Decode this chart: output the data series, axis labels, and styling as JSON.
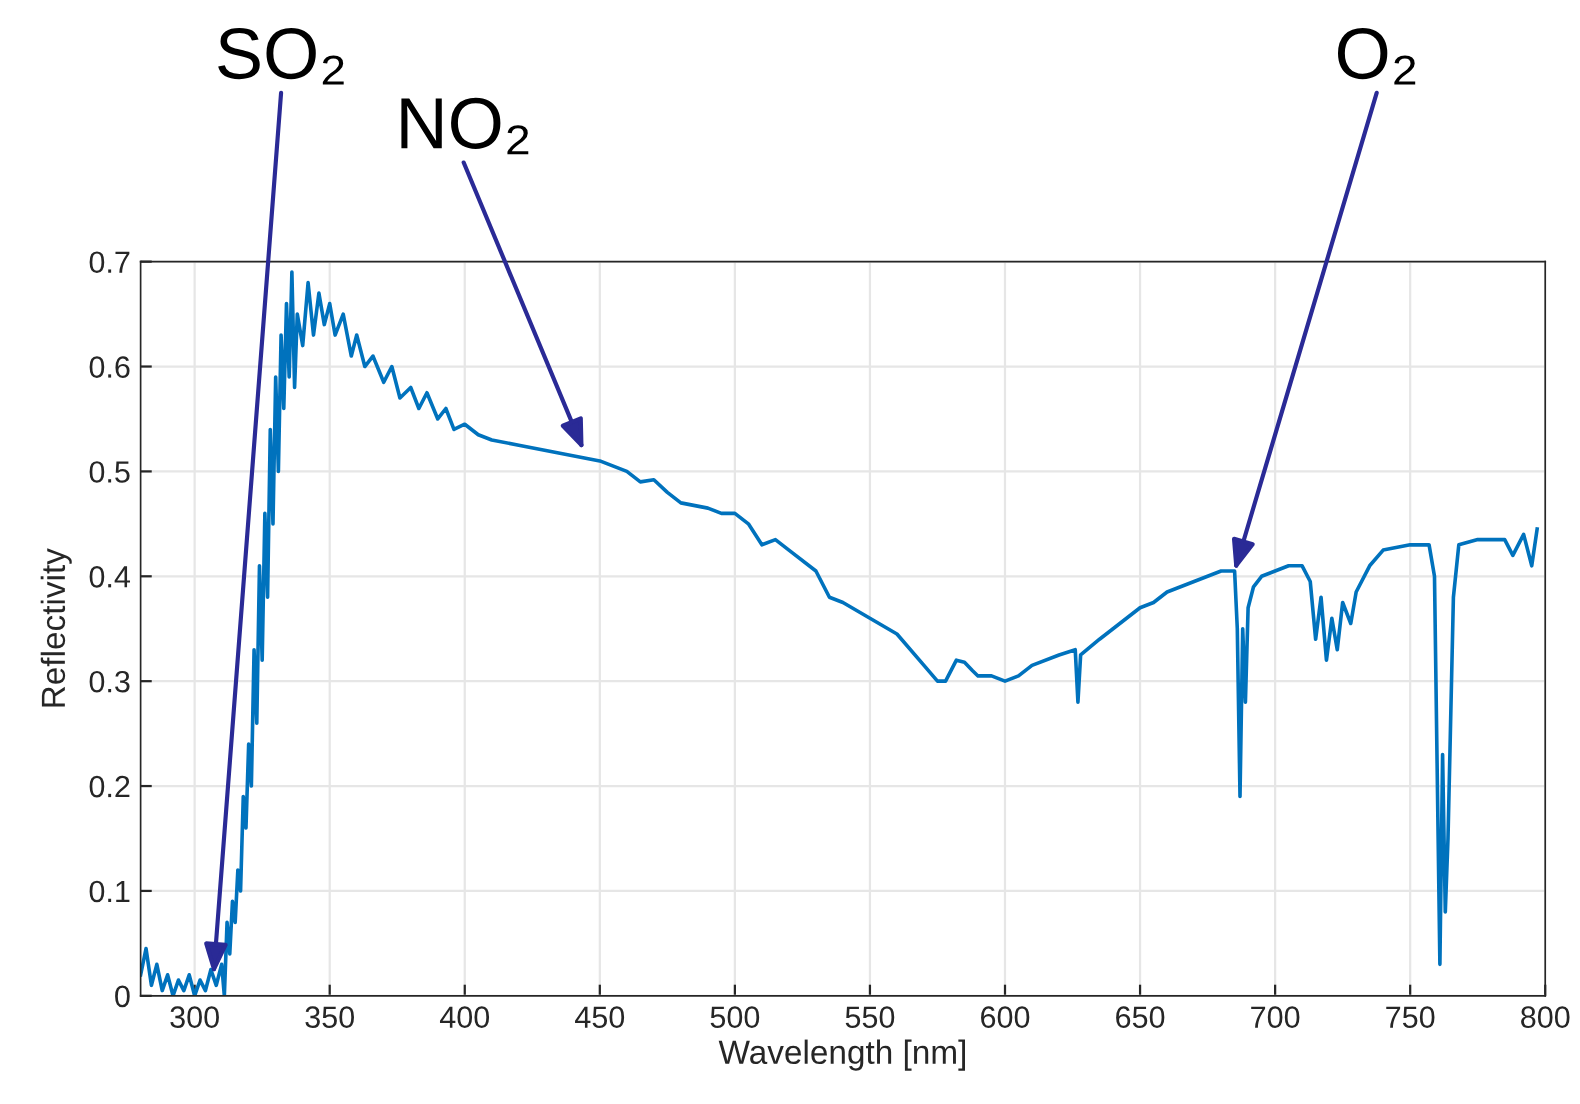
{
  "chart_data": {
    "type": "line",
    "xlabel": "Wavelength [nm]",
    "ylabel": "Reflectivity",
    "xlim": [
      280,
      800
    ],
    "ylim": [
      0,
      0.7
    ],
    "xticks": [
      300,
      350,
      400,
      450,
      500,
      550,
      600,
      650,
      700,
      750,
      800
    ],
    "yticks": [
      0,
      0.1,
      0.2,
      0.3,
      0.4,
      0.5,
      0.6,
      0.7
    ],
    "grid": true,
    "line_style": "solid",
    "marker": "none",
    "annotations": [
      {
        "text": "SO₂",
        "x": 307,
        "y": 0.02
      },
      {
        "text": "NO₂",
        "x": 444,
        "y": 0.52
      },
      {
        "text": "O₂",
        "x": 685,
        "y": 0.405
      }
    ],
    "series": [
      {
        "color": "#0072bd",
        "x": [
          280,
          282,
          284,
          286,
          288,
          290,
          292,
          294,
          296,
          298,
          300,
          302,
          304,
          306,
          308,
          310,
          311,
          312,
          313,
          314,
          315,
          316,
          317,
          318,
          319,
          320,
          321,
          322,
          323,
          324,
          325,
          326,
          327,
          328,
          329,
          330,
          331,
          332,
          333,
          334,
          335,
          336,
          337,
          338,
          340,
          342,
          344,
          346,
          348,
          350,
          352,
          355,
          358,
          360,
          363,
          366,
          370,
          373,
          376,
          380,
          383,
          386,
          390,
          393,
          396,
          400,
          405,
          410,
          420,
          430,
          440,
          450,
          460,
          465,
          470,
          475,
          480,
          490,
          495,
          500,
          505,
          510,
          515,
          520,
          530,
          535,
          540,
          550,
          560,
          570,
          575,
          578,
          582,
          585,
          588,
          590,
          595,
          600,
          605,
          610,
          620,
          626,
          627,
          628,
          635,
          640,
          645,
          650,
          655,
          660,
          670,
          680,
          685,
          686,
          687,
          688,
          689,
          690,
          692,
          695,
          700,
          705,
          710,
          713,
          715,
          717,
          719,
          721,
          723,
          725,
          728,
          730,
          735,
          740,
          750,
          757,
          759,
          761,
          762,
          763,
          764,
          766,
          768,
          775,
          785,
          788,
          792,
          795,
          797
        ],
        "values": [
          0.02,
          0.045,
          0.01,
          0.03,
          0.005,
          0.02,
          0.0,
          0.015,
          0.005,
          0.02,
          0.0,
          0.015,
          0.005,
          0.025,
          0.01,
          0.03,
          0.0,
          0.07,
          0.04,
          0.09,
          0.07,
          0.12,
          0.1,
          0.19,
          0.16,
          0.24,
          0.2,
          0.33,
          0.26,
          0.41,
          0.32,
          0.46,
          0.38,
          0.54,
          0.45,
          0.59,
          0.5,
          0.63,
          0.56,
          0.66,
          0.59,
          0.69,
          0.58,
          0.65,
          0.62,
          0.68,
          0.63,
          0.67,
          0.64,
          0.66,
          0.63,
          0.65,
          0.61,
          0.63,
          0.6,
          0.61,
          0.585,
          0.6,
          0.57,
          0.58,
          0.56,
          0.575,
          0.55,
          0.56,
          0.54,
          0.545,
          0.535,
          0.53,
          0.525,
          0.52,
          0.515,
          0.51,
          0.5,
          0.49,
          0.492,
          0.48,
          0.47,
          0.465,
          0.46,
          0.46,
          0.45,
          0.43,
          0.435,
          0.425,
          0.405,
          0.38,
          0.375,
          0.36,
          0.345,
          0.315,
          0.3,
          0.3,
          0.32,
          0.318,
          0.31,
          0.305,
          0.305,
          0.3,
          0.305,
          0.315,
          0.325,
          0.33,
          0.28,
          0.325,
          0.34,
          0.35,
          0.36,
          0.37,
          0.375,
          0.385,
          0.395,
          0.405,
          0.405,
          0.35,
          0.19,
          0.35,
          0.28,
          0.37,
          0.39,
          0.4,
          0.405,
          0.41,
          0.41,
          0.395,
          0.34,
          0.38,
          0.32,
          0.36,
          0.33,
          0.375,
          0.355,
          0.385,
          0.41,
          0.425,
          0.43,
          0.43,
          0.4,
          0.03,
          0.23,
          0.08,
          0.15,
          0.38,
          0.43,
          0.435,
          0.435,
          0.42,
          0.44,
          0.41,
          0.445
        ]
      }
    ]
  }
}
